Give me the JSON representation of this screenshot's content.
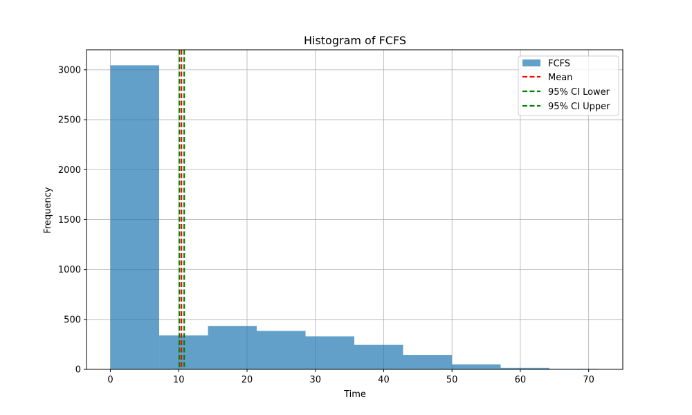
{
  "chart_data": {
    "type": "bar",
    "title": "Histogram of FCFS",
    "xlabel": "Time",
    "ylabel": "Frequency",
    "xlim": [
      -3.5,
      75
    ],
    "ylim": [
      0,
      3200
    ],
    "xticks": [
      0,
      10,
      20,
      30,
      40,
      50,
      60,
      70
    ],
    "yticks": [
      0,
      500,
      1000,
      1500,
      2000,
      2500,
      3000
    ],
    "grid": true,
    "legend_position": "top-right",
    "bins": {
      "edges": [
        0,
        7.14,
        14.28,
        21.42,
        28.56,
        35.7,
        42.84,
        49.98,
        57.12,
        64.26,
        71.4
      ],
      "counts": [
        3045,
        340,
        435,
        385,
        330,
        245,
        145,
        50,
        15,
        5
      ],
      "name": "FCFS",
      "color": "#1f77b4"
    },
    "vlines": [
      {
        "name": "Mean",
        "x": 10.4,
        "color": "#ff0000",
        "style": "dashed"
      },
      {
        "name": "95% CI Lower",
        "x": 10.1,
        "color": "#008000",
        "style": "dashed"
      },
      {
        "name": "95% CI Upper",
        "x": 10.8,
        "color": "#008000",
        "style": "dashed"
      }
    ]
  }
}
